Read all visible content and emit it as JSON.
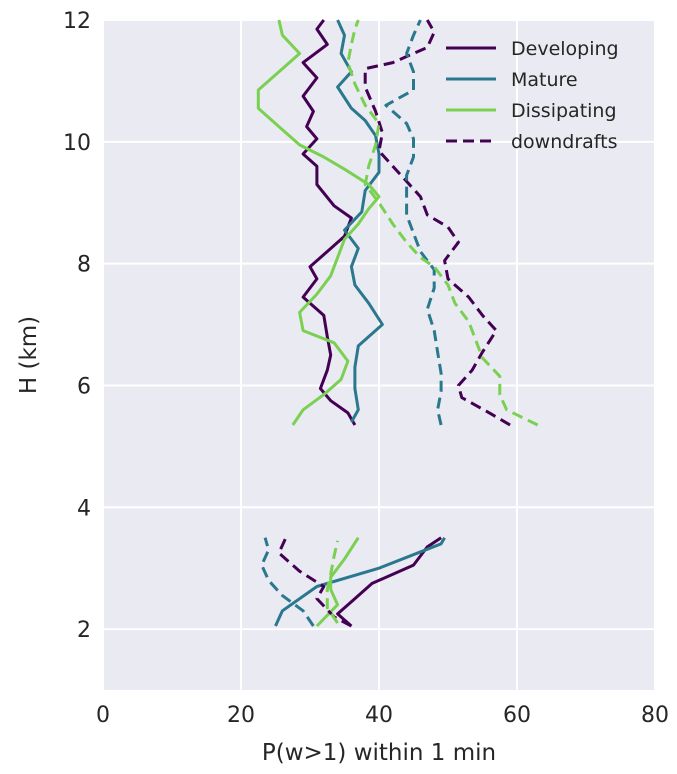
{
  "chart_data": {
    "type": "line",
    "title": "",
    "xlabel": "P(w>1) within 1 min",
    "ylabel": "H (km)",
    "xlim": [
      0,
      80
    ],
    "ylim": [
      1,
      12
    ],
    "x_ticks": [
      "0",
      "20",
      "40",
      "60",
      "80"
    ],
    "y_ticks": [
      "2",
      "4",
      "6",
      "8",
      "10",
      "12"
    ],
    "grid": true,
    "background": "#eaeaf2",
    "legend_position": "top-right",
    "colors": {
      "developing": "#440154",
      "mature": "#2a788e",
      "dissipating": "#7ad151"
    },
    "legend": [
      {
        "label": "Developing",
        "color": "#440154",
        "dashed": false
      },
      {
        "label": "Mature",
        "color": "#2a788e",
        "dashed": false
      },
      {
        "label": "Dissipating",
        "color": "#7ad151",
        "dashed": false
      },
      {
        "label": "downdrafts",
        "color": "#440154",
        "dashed": true
      }
    ],
    "series": [
      {
        "name": "Developing",
        "style": "solid",
        "color": "#440154",
        "segments": [
          [
            [
              36.5,
              5.35
            ],
            [
              35.5,
              5.55
            ],
            [
              33,
              5.75
            ],
            [
              31.5,
              5.95
            ],
            [
              32.5,
              6.25
            ],
            [
              33,
              6.5
            ],
            [
              32.5,
              6.8
            ],
            [
              32,
              7.15
            ],
            [
              29,
              7.45
            ],
            [
              31,
              7.75
            ],
            [
              30,
              7.95
            ],
            [
              32.5,
              8.2
            ],
            [
              35,
              8.45
            ],
            [
              36,
              8.75
            ],
            [
              33.5,
              8.95
            ],
            [
              31,
              9.3
            ],
            [
              31,
              9.6
            ],
            [
              29,
              9.8
            ],
            [
              31,
              10.05
            ],
            [
              29.5,
              10.25
            ],
            [
              30.5,
              10.5
            ],
            [
              29,
              10.75
            ],
            [
              31,
              11.05
            ],
            [
              29,
              11.3
            ],
            [
              32.5,
              11.6
            ],
            [
              31,
              11.85
            ],
            [
              32,
              12.0
            ]
          ],
          [
            [
              36,
              2.05
            ],
            [
              35,
              2.15
            ],
            [
              34,
              2.25
            ],
            [
              36,
              2.45
            ],
            [
              39,
              2.75
            ],
            [
              45,
              3.05
            ],
            [
              47,
              3.35
            ],
            [
              49,
              3.5
            ]
          ]
        ]
      },
      {
        "name": "Mature",
        "style": "solid",
        "color": "#2a788e",
        "segments": [
          [
            [
              36,
              5.4
            ],
            [
              37,
              5.6
            ],
            [
              36.5,
              5.95
            ],
            [
              36.5,
              6.3
            ],
            [
              37,
              6.65
            ],
            [
              40.5,
              7.0
            ],
            [
              38.5,
              7.35
            ],
            [
              36.5,
              7.65
            ],
            [
              36,
              7.95
            ],
            [
              37,
              8.25
            ],
            [
              35,
              8.55
            ],
            [
              37.5,
              8.85
            ],
            [
              38,
              9.2
            ],
            [
              40,
              9.5
            ],
            [
              40,
              9.8
            ],
            [
              39.5,
              10.1
            ],
            [
              38,
              10.35
            ],
            [
              36,
              10.55
            ],
            [
              34,
              10.9
            ],
            [
              36,
              11.15
            ],
            [
              34.5,
              11.45
            ],
            [
              35,
              11.75
            ],
            [
              34,
              12.0
            ]
          ],
          [
            [
              25,
              2.05
            ],
            [
              26,
              2.3
            ],
            [
              31,
              2.7
            ],
            [
              40,
              3.0
            ],
            [
              49,
              3.4
            ],
            [
              49.5,
              3.5
            ]
          ]
        ]
      },
      {
        "name": "Dissipating",
        "style": "solid",
        "color": "#7ad151",
        "segments": [
          [
            [
              27.5,
              5.35
            ],
            [
              29,
              5.6
            ],
            [
              32,
              5.85
            ],
            [
              34.5,
              6.1
            ],
            [
              35.5,
              6.4
            ],
            [
              33.5,
              6.7
            ],
            [
              29,
              6.9
            ],
            [
              28.5,
              7.2
            ],
            [
              31,
              7.5
            ],
            [
              33,
              7.8
            ],
            [
              34,
              8.1
            ],
            [
              35,
              8.4
            ],
            [
              37,
              8.65
            ],
            [
              38.5,
              8.9
            ],
            [
              40,
              9.1
            ],
            [
              38.5,
              9.3
            ],
            [
              35,
              9.55
            ],
            [
              32,
              9.75
            ],
            [
              28.5,
              9.95
            ],
            [
              25.5,
              10.25
            ],
            [
              22.5,
              10.55
            ],
            [
              22.5,
              10.85
            ],
            [
              26,
              11.2
            ],
            [
              28.5,
              11.45
            ],
            [
              26,
              11.75
            ],
            [
              25.5,
              12.0
            ]
          ],
          [
            [
              31,
              2.05
            ],
            [
              34,
              2.4
            ],
            [
              33,
              2.65
            ],
            [
              33,
              2.85
            ],
            [
              35,
              3.15
            ],
            [
              37,
              3.5
            ]
          ]
        ]
      },
      {
        "name": "Developing downdrafts",
        "style": "dashed",
        "color": "#440154",
        "segments": [
          [
            [
              59,
              5.35
            ],
            [
              56,
              5.55
            ],
            [
              52,
              5.8
            ],
            [
              51.5,
              6.0
            ],
            [
              53.5,
              6.25
            ],
            [
              55,
              6.55
            ],
            [
              57,
              6.9
            ],
            [
              55,
              7.15
            ],
            [
              53,
              7.45
            ],
            [
              50,
              7.75
            ],
            [
              49.5,
              8.05
            ],
            [
              51.5,
              8.35
            ],
            [
              50,
              8.6
            ],
            [
              47,
              8.8
            ],
            [
              46,
              9.1
            ],
            [
              44,
              9.35
            ],
            [
              42,
              9.6
            ],
            [
              40,
              9.85
            ],
            [
              40.5,
              10.15
            ],
            [
              39.5,
              10.5
            ],
            [
              38,
              10.9
            ],
            [
              38,
              11.2
            ],
            [
              42,
              11.3
            ],
            [
              47,
              11.55
            ],
            [
              48,
              11.8
            ],
            [
              47,
              12.0
            ]
          ],
          [
            [
              36,
              2.05
            ],
            [
              33.5,
              2.2
            ],
            [
              31,
              2.5
            ],
            [
              32,
              2.7
            ],
            [
              28.5,
              2.95
            ],
            [
              25.5,
              3.25
            ],
            [
              26.5,
              3.5
            ]
          ]
        ]
      },
      {
        "name": "Mature downdrafts",
        "style": "dashed",
        "color": "#2a788e",
        "segments": [
          [
            [
              49,
              5.35
            ],
            [
              48.5,
              5.6
            ],
            [
              49,
              5.9
            ],
            [
              49,
              6.2
            ],
            [
              48.5,
              6.55
            ],
            [
              48,
              6.9
            ],
            [
              47,
              7.25
            ],
            [
              48,
              7.6
            ],
            [
              48,
              7.9
            ],
            [
              46,
              8.2
            ],
            [
              45,
              8.5
            ],
            [
              44,
              8.8
            ],
            [
              44,
              9.15
            ],
            [
              44,
              9.45
            ],
            [
              45,
              9.75
            ],
            [
              45,
              10.05
            ],
            [
              44,
              10.3
            ],
            [
              41,
              10.6
            ],
            [
              45,
              10.85
            ],
            [
              45,
              11.15
            ],
            [
              44,
              11.45
            ],
            [
              45,
              11.75
            ],
            [
              46,
              12.0
            ]
          ],
          [
            [
              30.5,
              2.05
            ],
            [
              29,
              2.3
            ],
            [
              26,
              2.55
            ],
            [
              24,
              2.8
            ],
            [
              23,
              3.05
            ],
            [
              24,
              3.3
            ],
            [
              23.5,
              3.5
            ]
          ]
        ]
      },
      {
        "name": "Dissipating downdrafts",
        "style": "dashed",
        "color": "#7ad151",
        "segments": [
          [
            [
              63,
              5.35
            ],
            [
              58.5,
              5.6
            ],
            [
              57.5,
              5.85
            ],
            [
              57.5,
              6.15
            ],
            [
              55,
              6.45
            ],
            [
              54,
              6.75
            ],
            [
              53,
              7.05
            ],
            [
              51,
              7.35
            ],
            [
              50,
              7.65
            ],
            [
              48,
              7.95
            ],
            [
              46,
              8.1
            ],
            [
              44,
              8.35
            ],
            [
              42,
              8.65
            ],
            [
              40,
              9.0
            ],
            [
              38,
              9.3
            ],
            [
              38.5,
              9.6
            ],
            [
              39.5,
              9.95
            ],
            [
              40,
              10.3
            ],
            [
              38,
              10.6
            ],
            [
              36.5,
              10.95
            ],
            [
              35.5,
              11.3
            ],
            [
              36,
              11.6
            ],
            [
              36.5,
              11.85
            ],
            [
              37,
              12.0
            ]
          ],
          [
            [
              34,
              2.1
            ],
            [
              32.5,
              2.35
            ],
            [
              32.5,
              2.65
            ],
            [
              33,
              2.9
            ],
            [
              33.5,
              3.2
            ],
            [
              34,
              3.45
            ]
          ]
        ]
      }
    ]
  }
}
